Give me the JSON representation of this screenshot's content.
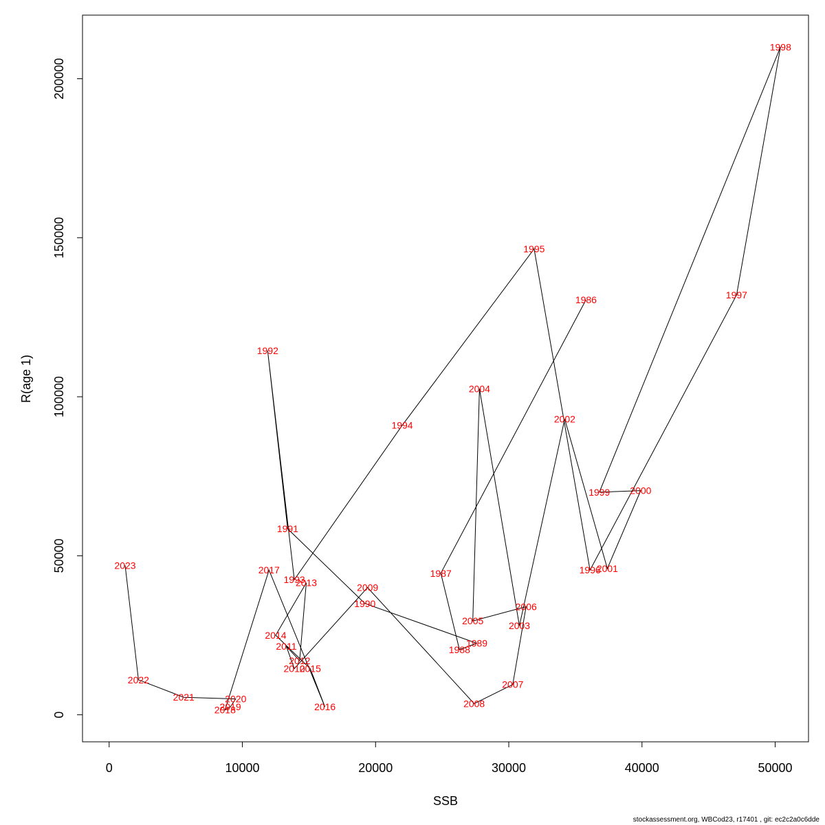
{
  "chart_data": {
    "type": "line",
    "title": "",
    "xlabel": "SSB",
    "ylabel": "R(age 1)",
    "xlim": [
      -2000,
      52500
    ],
    "ylim": [
      -8500,
      220000
    ],
    "x_ticks": [
      0,
      10000,
      20000,
      30000,
      40000,
      50000
    ],
    "x_tick_labels": [
      "0",
      "10000",
      "20000",
      "30000",
      "40000",
      "50000"
    ],
    "y_ticks": [
      0,
      50000,
      100000,
      150000,
      200000
    ],
    "y_tick_labels": [
      "0",
      "50000",
      "100000",
      "150000",
      "200000"
    ],
    "grid": false,
    "line_color": "#000000",
    "label_color": "#ff0000",
    "points": [
      {
        "label": "1986",
        "x": 35800,
        "y": 130500
      },
      {
        "label": "1987",
        "x": 24900,
        "y": 44500
      },
      {
        "label": "1988",
        "x": 26300,
        "y": 20500
      },
      {
        "label": "1989",
        "x": 27600,
        "y": 22500
      },
      {
        "label": "1990",
        "x": 19200,
        "y": 35000
      },
      {
        "label": "1991",
        "x": 13400,
        "y": 58500
      },
      {
        "label": "1992",
        "x": 11900,
        "y": 114500
      },
      {
        "label": "1993",
        "x": 13900,
        "y": 42500
      },
      {
        "label": "1994",
        "x": 22000,
        "y": 91000
      },
      {
        "label": "1995",
        "x": 31900,
        "y": 146500
      },
      {
        "label": "1996",
        "x": 36100,
        "y": 45500
      },
      {
        "label": "1997",
        "x": 47100,
        "y": 132000
      },
      {
        "label": "1998",
        "x": 50400,
        "y": 210000
      },
      {
        "label": "1999",
        "x": 36800,
        "y": 70000
      },
      {
        "label": "2000",
        "x": 39900,
        "y": 70500
      },
      {
        "label": "2001",
        "x": 37400,
        "y": 46000
      },
      {
        "label": "2002",
        "x": 34200,
        "y": 93000
      },
      {
        "label": "2003",
        "x": 30800,
        "y": 28000
      },
      {
        "label": "2004",
        "x": 27800,
        "y": 102500
      },
      {
        "label": "2005",
        "x": 27300,
        "y": 29500
      },
      {
        "label": "2006",
        "x": 31300,
        "y": 34000
      },
      {
        "label": "2007",
        "x": 30300,
        "y": 9500
      },
      {
        "label": "2008",
        "x": 27400,
        "y": 3500
      },
      {
        "label": "2009",
        "x": 19400,
        "y": 40000
      },
      {
        "label": "2010",
        "x": 13900,
        "y": 14500
      },
      {
        "label": "2011",
        "x": 13300,
        "y": 21500
      },
      {
        "label": "2012",
        "x": 14300,
        "y": 17000
      },
      {
        "label": "2013",
        "x": 14800,
        "y": 41500
      },
      {
        "label": "2014",
        "x": 12500,
        "y": 25000
      },
      {
        "label": "2015",
        "x": 15100,
        "y": 14500
      },
      {
        "label": "2016",
        "x": 16200,
        "y": 2500
      },
      {
        "label": "2017",
        "x": 12000,
        "y": 45500
      },
      {
        "label": "2018",
        "x": 8700,
        "y": 1500
      },
      {
        "label": "2019",
        "x": 9100,
        "y": 2500
      },
      {
        "label": "2020",
        "x": 9500,
        "y": 5000
      },
      {
        "label": "2021",
        "x": 5600,
        "y": 5500
      },
      {
        "label": "2022",
        "x": 2200,
        "y": 11000
      },
      {
        "label": "2023",
        "x": 1200,
        "y": 47000
      }
    ]
  },
  "footer": "stockassessment.org, WBCod23, r17401 , git: ec2c2a0c6dde"
}
